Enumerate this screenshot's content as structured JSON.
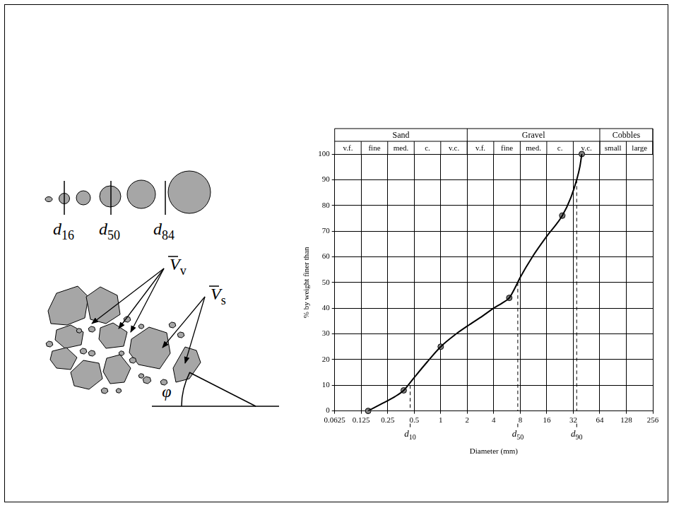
{
  "diagram": {
    "grain_size_labels": [
      {
        "symbol": "d",
        "subscript": "16"
      },
      {
        "symbol": "d",
        "subscript": "50"
      },
      {
        "symbol": "d",
        "subscript": "84"
      }
    ],
    "void_label": {
      "symbol": "V",
      "subscript": "v"
    },
    "solid_label": {
      "symbol": "V",
      "subscript": "s"
    },
    "angle_label": "φ"
  },
  "chart_data": {
    "type": "line",
    "x_label": "Diameter (mm)",
    "y_label": "% by weight finer than",
    "log": "x",
    "grid": true,
    "xlim": [
      0.0625,
      256
    ],
    "xticks": [
      0.0625,
      0.125,
      0.25,
      0.5,
      1,
      2,
      4,
      8,
      16,
      32,
      64,
      128,
      256
    ],
    "ylim": [
      0,
      100
    ],
    "yticks": [
      0,
      10,
      20,
      30,
      40,
      50,
      60,
      70,
      80,
      90,
      100
    ],
    "size_classes": [
      {
        "name": "Sand",
        "range": [
          0.0625,
          2
        ],
        "subclasses": [
          "v.f.",
          "fine",
          "med.",
          "c.",
          "v.c."
        ]
      },
      {
        "name": "Gravel",
        "range": [
          2,
          64
        ],
        "subclasses": [
          "v.f.",
          "fine",
          "med.",
          "c.",
          "v.c."
        ]
      },
      {
        "name": "Cobbles",
        "range": [
          64,
          256
        ],
        "subclasses": [
          "small",
          "large"
        ]
      }
    ],
    "series": [
      {
        "type": "line",
        "marker": "none",
        "line_style": "solid",
        "color": "#000000",
        "x": [
          0.15,
          0.22,
          0.3,
          0.38,
          0.5,
          0.7,
          1,
          1.5,
          2,
          3,
          4,
          5,
          6,
          7,
          8,
          11,
          16,
          24,
          30,
          35,
          38,
          40
        ],
        "values": [
          0,
          3,
          5.5,
          8,
          13,
          19,
          25,
          30,
          33,
          37,
          40,
          42,
          44,
          48,
          52,
          60,
          68,
          76,
          83,
          90,
          95,
          100
        ]
      },
      {
        "type": "scatter",
        "marker": "circle",
        "color": "#808080",
        "x": [
          0.15,
          0.38,
          1,
          6,
          24,
          40
        ],
        "values": [
          0,
          8,
          25,
          44,
          76,
          100
        ]
      }
    ],
    "percentiles": [
      {
        "symbol": "d",
        "subscript": "10",
        "diameter": 0.45,
        "percent": 10
      },
      {
        "symbol": "d",
        "subscript": "50",
        "diameter": 7.5,
        "percent": 50
      },
      {
        "symbol": "d",
        "subscript": "90",
        "diameter": 35,
        "percent": 90
      }
    ]
  }
}
